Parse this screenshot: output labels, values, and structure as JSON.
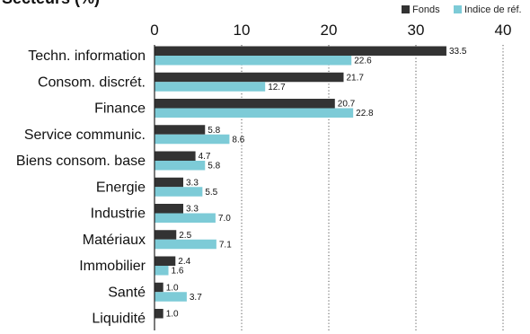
{
  "chart_data": {
    "type": "bar",
    "orientation": "horizontal",
    "title": "Secteurs (%)",
    "categories": [
      "Techn. information",
      "Consom. discrét.",
      "Finance",
      "Service communic.",
      "Biens consom. base",
      "Energie",
      "Industrie",
      "Matériaux",
      "Immobilier",
      "Santé",
      "Liquidité"
    ],
    "series": [
      {
        "name": "Fonds",
        "color": "#333333",
        "values": [
          33.5,
          21.7,
          20.7,
          5.8,
          4.7,
          3.3,
          3.3,
          2.5,
          2.4,
          1.0,
          1.0
        ]
      },
      {
        "name": "Indice de réf.",
        "color": "#7dcbd7",
        "values": [
          22.6,
          12.7,
          22.8,
          8.6,
          5.8,
          5.5,
          7.0,
          7.1,
          1.6,
          3.7,
          null
        ]
      }
    ],
    "xlim": [
      0,
      40
    ],
    "xticks": [
      0,
      10,
      20,
      30,
      40
    ],
    "grid": true,
    "legend_position": "top-right"
  }
}
